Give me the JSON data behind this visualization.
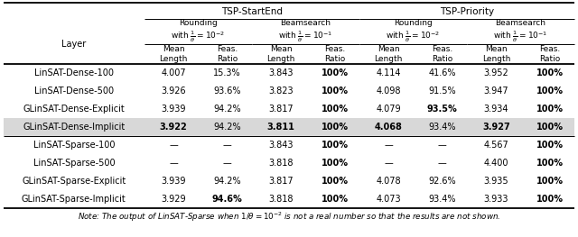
{
  "rows": [
    {
      "layer": "LinSAT-Dense-100",
      "data": [
        "4.007",
        "15.3%",
        "3.843",
        "100%",
        "4.114",
        "41.6%",
        "3.952",
        "100%"
      ],
      "bold": [
        false,
        false,
        false,
        true,
        false,
        false,
        false,
        true
      ],
      "highlight": false
    },
    {
      "layer": "LinSAT-Dense-500",
      "data": [
        "3.926",
        "93.6%",
        "3.823",
        "100%",
        "4.098",
        "91.5%",
        "3.947",
        "100%"
      ],
      "bold": [
        false,
        false,
        false,
        true,
        false,
        false,
        false,
        true
      ],
      "highlight": false
    },
    {
      "layer": "GLinSAT-Dense-Explicit",
      "data": [
        "3.939",
        "94.2%",
        "3.817",
        "100%",
        "4.079",
        "93.5%",
        "3.934",
        "100%"
      ],
      "bold": [
        false,
        false,
        false,
        true,
        false,
        true,
        false,
        true
      ],
      "highlight": false
    },
    {
      "layer": "GLinSAT-Dense-Implicit",
      "data": [
        "3.922",
        "94.2%",
        "3.811",
        "100%",
        "4.068",
        "93.4%",
        "3.927",
        "100%"
      ],
      "bold": [
        true,
        false,
        true,
        true,
        true,
        false,
        true,
        true
      ],
      "highlight": true
    },
    {
      "layer": "LinSAT-Sparse-100",
      "data": [
        "—",
        "—",
        "3.843",
        "100%",
        "—",
        "—",
        "4.567",
        "100%"
      ],
      "bold": [
        false,
        false,
        false,
        true,
        false,
        false,
        false,
        true
      ],
      "highlight": false
    },
    {
      "layer": "LinSAT-Sparse-500",
      "data": [
        "—",
        "—",
        "3.818",
        "100%",
        "—",
        "—",
        "4.400",
        "100%"
      ],
      "bold": [
        false,
        false,
        false,
        true,
        false,
        false,
        false,
        true
      ],
      "highlight": false
    },
    {
      "layer": "GLinSAT-Sparse-Explicit",
      "data": [
        "3.939",
        "94.2%",
        "3.817",
        "100%",
        "4.078",
        "92.6%",
        "3.935",
        "100%"
      ],
      "bold": [
        false,
        false,
        false,
        true,
        false,
        false,
        false,
        true
      ],
      "highlight": false
    },
    {
      "layer": "GLinSAT-Sparse-Implicit",
      "data": [
        "3.929",
        "94.6%",
        "3.818",
        "100%",
        "4.073",
        "93.4%",
        "3.933",
        "100%"
      ],
      "bold": [
        false,
        true,
        false,
        true,
        false,
        false,
        false,
        true
      ],
      "highlight": false
    }
  ],
  "col_headers": [
    "Mean\nLength",
    "Feas.\nRatio",
    "Mean\nLength",
    "Feas.\nRatio",
    "Mean\nLength",
    "Feas.\nRatio",
    "Mean\nLength",
    "Feas.\nRatio"
  ],
  "highlight_color": "#d8d8d8",
  "bg_color": "white",
  "lw_thick": 1.3,
  "lw_thin": 0.7,
  "fontsize_data": 7.0,
  "fontsize_header": 7.0,
  "fontsize_note": 6.3
}
